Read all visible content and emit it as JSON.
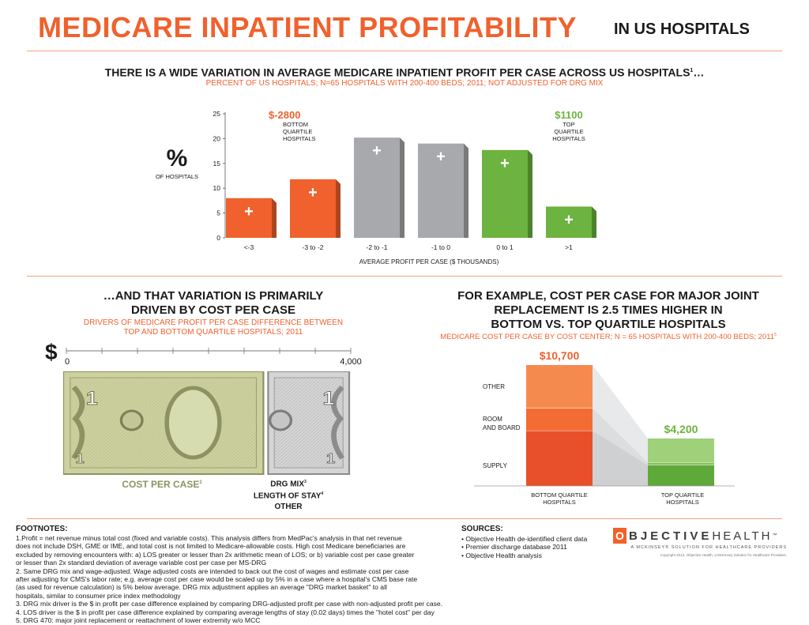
{
  "header": {
    "title": "MEDICARE INPATIENT PROFITABILITY",
    "subtitle": "IN US HOSPITALS"
  },
  "top_section": {
    "headline": "THERE IS A WIDE VARIATION IN AVERAGE MEDICARE INPATIENT PROFIT PER CASE ACROSS US HOSPITALS",
    "headline_sup": "1",
    "headline_tail": "…",
    "subheadline": "PERCENT OF US HOSPITALS; N=65 HOSPITALS WITH 200-400 BEDS; 2011; NOT ADJUSTED FOR DRG MIX",
    "ylabel_big": "%",
    "ylabel_small": "OF HOSPITALS",
    "bottom_callout": {
      "value": "$-2800",
      "l1": "BOTTOM",
      "l2": "QUARTILE",
      "l3": "HOSPITALS"
    },
    "top_callout": {
      "value": "$1100",
      "l1": "TOP",
      "l2": "QUARTILE",
      "l3": "HOSPITALS"
    },
    "plus_glyph": "+"
  },
  "chart_data": [
    {
      "type": "bar",
      "categories": [
        "<-3",
        "-3 to -2",
        "-2 to -1",
        "-1 to 0",
        "0 to 1",
        ">1"
      ],
      "values": [
        8,
        11.8,
        20.2,
        19,
        17.7,
        6.3
      ],
      "bar_colors": [
        "#f0612d",
        "#f0612d",
        "#a7a9ac",
        "#a7a9ac",
        "#6cb33f",
        "#6cb33f"
      ],
      "xlabel": "AVERAGE PROFIT PER CASE ($ THOUSANDS)",
      "ylabel": "% OF HOSPITALS",
      "ylim": [
        0,
        25
      ],
      "yticks": [
        0,
        5,
        10,
        15,
        20,
        25
      ],
      "grid": false
    },
    {
      "type": "bar",
      "categories": [
        "BOTTOM QUARTILE HOSPITALS",
        "TOP QUARTILE HOSPITALS"
      ],
      "stacked": true,
      "series": [
        {
          "name": "SUPPLY",
          "values": [
            4900,
            1850
          ],
          "colors": [
            "#e8502b",
            "#5fa83a"
          ]
        },
        {
          "name": "ROOM AND BOARD",
          "values": [
            2000,
            250
          ],
          "colors": [
            "#f36c33",
            "#86c25b"
          ]
        },
        {
          "name": "OTHER",
          "values": [
            3800,
            2100
          ],
          "colors": [
            "#f58a4f",
            "#9fd07a"
          ]
        }
      ],
      "totals": [
        "$10,700",
        "$4,200"
      ],
      "total_values": [
        10700,
        4200
      ]
    }
  ],
  "left_section": {
    "headline_l1": "…AND THAT VARIATION IS PRIMARILY",
    "headline_l2": "DRIVEN BY COST PER CASE",
    "sub_l1": "DRIVERS OF MEDICARE PROFIT PER CASE DIFFERENCE BETWEEN",
    "sub_l2": "TOP AND BOTTOM QUARTILE HOSPITALS; 2011",
    "dollar": "$",
    "scale_min": "0",
    "scale_max": "4,000",
    "scale_max_value": 4000,
    "cost_per_case_value": 2860,
    "other_drivers_value": 1140,
    "bill_digit": "1",
    "cost_label": "COST PER CASE",
    "cost_sup": "2",
    "drg_label": "DRG MIX",
    "drg_sup": "3",
    "los_label": "LENGTH OF STAY",
    "los_sup": "4",
    "other_label": "OTHER"
  },
  "right_section": {
    "headline_l1": "FOR EXAMPLE, COST PER CASE FOR MAJOR JOINT",
    "headline_l2": "REPLACEMENT IS 2.5 TIMES HIGHER IN",
    "headline_l3": "BOTTOM VS. TOP QUARTILE HOSPITALS",
    "sub": "MEDICARE COST PER CASE BY COST CENTER; N = 65 HOSPITALS WITH 200-400 BEDS; 2011",
    "sub_sup": "5",
    "label_other": "OTHER",
    "label_room_l1": "ROOM",
    "label_room_l2": "AND BOARD",
    "label_supply": "SUPPLY",
    "total_bottom": "$10,700",
    "total_top": "$4,200",
    "cat_bottom_l1": "BOTTOM QUARTILE",
    "cat_bottom_l2": "HOSPITALS",
    "cat_top_l1": "TOP QUARTILE",
    "cat_top_l2": "HOSPITALS"
  },
  "footnotes": {
    "title": "FOOTNOTES:",
    "lines": [
      "1.Profit = net revenue minus total cost (fixed and variable costs). This analysis differs from MedPac's analysis in that net revenue",
      "does not include DSH, GME or IME, and total cost is not limited to Medicare-allowable costs. High cost Medicare beneficiaries are",
      "excluded by removing encounters with: a) LOS greater or lesser than 2x arithmetic mean of LOS; or b) variable cost per case greater",
      "or lesser than 2x standard deviation of average variable cost per case per MS-DRG",
      "2. Same DRG mix and wage-adjusted. Wage adjusted costs are intended to back out the cost of wages and estimate cost per case",
      "after adjusting for CMS's labor rate; e.g. average cost per case would be scaled up by 5% in a case where a hospital's CMS base rate",
      "(as used for revenue calculation) is 5% below average. DRG mix adjustment applies an average \"DRG market basket\" to all",
      "hospitals, similar to consumer price index methodology",
      "3. DRG mix driver is the $ in profit per case difference explained by comparing DRG-adjusted profit per case with non-adjusted profit per case.",
      "4. LOS driver is the $ in profit per case difference explained by comparing average lengths of stay (0.02 days) times the \"hotel cost\" per day",
      "5. DRG 470: major joint replacement or reattachment of lower extremity w/o MCC"
    ]
  },
  "sources": {
    "title": "SOURCES:",
    "items": [
      "• Objective Health de-identified client data",
      "• Premier discharge database 2011",
      "• Objective Health analysis"
    ]
  },
  "logo": {
    "letter_o": "O",
    "word1": "BJECTIVE",
    "word2": "HEALTH",
    "tm": "™",
    "tagline": "A MCKINSEY® SOLUTION FOR HEALTHCARE PROVIDERS",
    "copyright": "Copyright 2012, Objective Health, a McKinsey Solution for Healthcare Providers."
  }
}
